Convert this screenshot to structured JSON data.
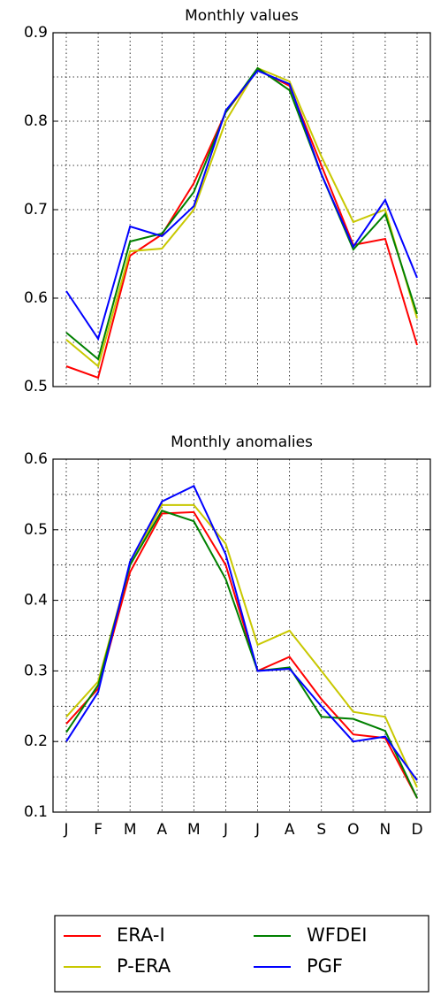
{
  "chart_data": [
    {
      "type": "line",
      "title": "Monthly values",
      "ylim": [
        0.5,
        0.9
      ],
      "yticks": [
        0.5,
        0.6,
        0.7,
        0.8,
        0.9
      ],
      "yminor": [
        0.55,
        0.65,
        0.75,
        0.85
      ],
      "grid": true,
      "series": [
        {
          "name": "ERA-I",
          "color": "#ff0000",
          "values": [
            0.523,
            0.51,
            0.648,
            0.672,
            0.73,
            0.81,
            0.858,
            0.84,
            0.75,
            0.66,
            0.667,
            0.547
          ]
        },
        {
          "name": "P-ERA",
          "color": "#c8c800",
          "values": [
            0.553,
            0.523,
            0.653,
            0.656,
            0.7,
            0.8,
            0.86,
            0.845,
            0.76,
            0.686,
            0.7,
            0.577
          ]
        },
        {
          "name": "WFDEI",
          "color": "#008000",
          "values": [
            0.561,
            0.531,
            0.664,
            0.673,
            0.72,
            0.81,
            0.86,
            0.835,
            0.74,
            0.655,
            0.695,
            0.582
          ]
        },
        {
          "name": "PGF",
          "color": "#0000ff",
          "values": [
            0.608,
            0.554,
            0.681,
            0.67,
            0.704,
            0.812,
            0.857,
            0.842,
            0.74,
            0.658,
            0.711,
            0.623
          ]
        }
      ]
    },
    {
      "type": "line",
      "title": "Monthly anomalies",
      "categories": [
        "J",
        "F",
        "M",
        "A",
        "M",
        "J",
        "J",
        "A",
        "S",
        "O",
        "N",
        "D"
      ],
      "ylim": [
        0.1,
        0.6
      ],
      "yticks": [
        0.1,
        0.2,
        0.3,
        0.4,
        0.5,
        0.6
      ],
      "yminor": [
        0.15,
        0.25,
        0.35,
        0.45,
        0.55
      ],
      "grid": true,
      "series": [
        {
          "color": "#ff0000",
          "values": [
            0.225,
            0.275,
            0.44,
            0.523,
            0.525,
            0.45,
            0.3,
            0.32,
            0.26,
            0.21,
            0.205,
            0.12
          ]
        },
        {
          "color": "#c8c800",
          "values": [
            0.235,
            0.285,
            0.45,
            0.535,
            0.535,
            0.48,
            0.337,
            0.357,
            0.3,
            0.242,
            0.235,
            0.135
          ]
        },
        {
          "color": "#008000",
          "values": [
            0.213,
            0.28,
            0.45,
            0.527,
            0.512,
            0.43,
            0.3,
            0.305,
            0.235,
            0.232,
            0.215,
            0.12
          ]
        },
        {
          "color": "#0000ff",
          "values": [
            0.2,
            0.27,
            0.455,
            0.54,
            0.562,
            0.465,
            0.3,
            0.303,
            0.25,
            0.2,
            0.207,
            0.145
          ]
        }
      ]
    }
  ]
}
